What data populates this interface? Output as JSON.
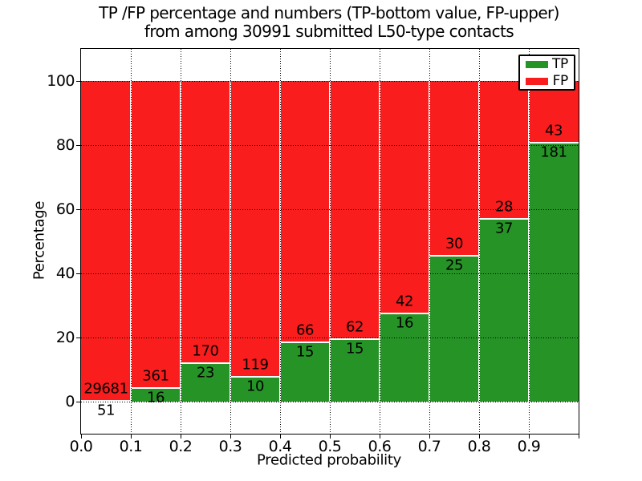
{
  "figure": {
    "title_line1": "TP /FP percentage and numbers (TP-bottom value, FP-upper)",
    "title_line2": "from among 30991 submitted L50-type contacts"
  },
  "chart_data": {
    "type": "bar",
    "stacked": true,
    "title": "TP /FP percentage and numbers (TP-bottom value, FP-upper)\nfrom among 30991 submitted L50-type contacts",
    "xlabel": "Predicted probability",
    "ylabel": "Percentage",
    "xlim": [
      0.0,
      1.0
    ],
    "ylim": [
      -10,
      110
    ],
    "grid": true,
    "bar_units": "percent of bin total (TP green bottom, FP red top, stacked to 100)",
    "label_convention": "FP count printed above segment boundary, TP count below",
    "legend_position": "upper right",
    "legend": [
      {
        "label": "TP",
        "color": "#269327"
      },
      {
        "label": "FP",
        "color": "#f91d1d"
      }
    ],
    "xticks": [
      {
        "pos": 0.0,
        "label": "0.0"
      },
      {
        "pos": 0.1,
        "label": "0.1"
      },
      {
        "pos": 0.2,
        "label": "0.2"
      },
      {
        "pos": 0.3,
        "label": "0.3"
      },
      {
        "pos": 0.4,
        "label": "0.4"
      },
      {
        "pos": 0.5,
        "label": "0.5"
      },
      {
        "pos": 0.6,
        "label": "0.6"
      },
      {
        "pos": 0.7,
        "label": "0.7"
      },
      {
        "pos": 0.8,
        "label": "0.8"
      },
      {
        "pos": 0.9,
        "label": "0.9"
      },
      {
        "pos": 1.0,
        "label": ""
      }
    ],
    "yticks": [
      {
        "pos": 0,
        "label": "0"
      },
      {
        "pos": 20,
        "label": "20"
      },
      {
        "pos": 40,
        "label": "40"
      },
      {
        "pos": 60,
        "label": "60"
      },
      {
        "pos": 80,
        "label": "80"
      },
      {
        "pos": 100,
        "label": "100"
      }
    ],
    "bins": [
      {
        "x_start": 0.0,
        "x_end": 0.1,
        "tp": 51,
        "fp": 29681
      },
      {
        "x_start": 0.1,
        "x_end": 0.2,
        "tp": 16,
        "fp": 361
      },
      {
        "x_start": 0.2,
        "x_end": 0.3,
        "tp": 23,
        "fp": 170
      },
      {
        "x_start": 0.3,
        "x_end": 0.4,
        "tp": 10,
        "fp": 119
      },
      {
        "x_start": 0.4,
        "x_end": 0.5,
        "tp": 15,
        "fp": 66
      },
      {
        "x_start": 0.5,
        "x_end": 0.6,
        "tp": 15,
        "fp": 62
      },
      {
        "x_start": 0.6,
        "x_end": 0.7,
        "tp": 16,
        "fp": 42
      },
      {
        "x_start": 0.7,
        "x_end": 0.8,
        "tp": 25,
        "fp": 30
      },
      {
        "x_start": 0.8,
        "x_end": 0.9,
        "tp": 37,
        "fp": 28
      },
      {
        "x_start": 0.9,
        "x_end": 1.0,
        "tp": 181,
        "fp": 43
      }
    ]
  },
  "colors": {
    "tp_green": "#269327",
    "fp_red": "#f91d1d",
    "bar_edge": "#ffffff",
    "grid": "#000000",
    "spine": "#000000",
    "background": "#ffffff",
    "text": "#000000"
  }
}
